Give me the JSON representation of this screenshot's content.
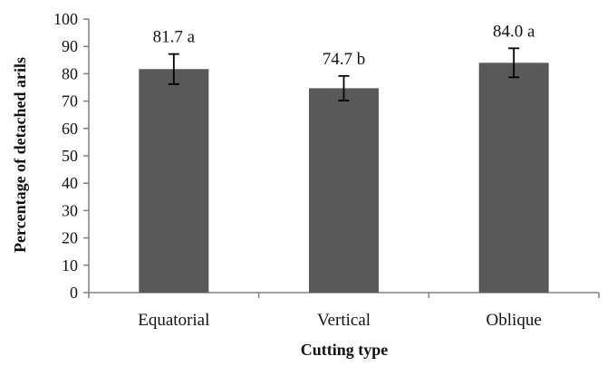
{
  "chart_data": {
    "type": "bar",
    "categories": [
      "Equatorial",
      "Vertical",
      "Oblique"
    ],
    "values": [
      81.7,
      74.7,
      84.0
    ],
    "error": [
      5.5,
      4.5,
      5.3
    ],
    "data_labels": [
      "81.7 a",
      "74.7 b",
      "84.0 a"
    ],
    "title": "",
    "xlabel": "Cutting type",
    "ylabel": "Percentage of detached arils",
    "ylim": [
      0,
      100
    ],
    "yticks": [
      0,
      10,
      20,
      30,
      40,
      50,
      60,
      70,
      80,
      90,
      100
    ],
    "grid": false,
    "legend": "none",
    "bar_color": "#595959",
    "axis_color": "#808080"
  }
}
